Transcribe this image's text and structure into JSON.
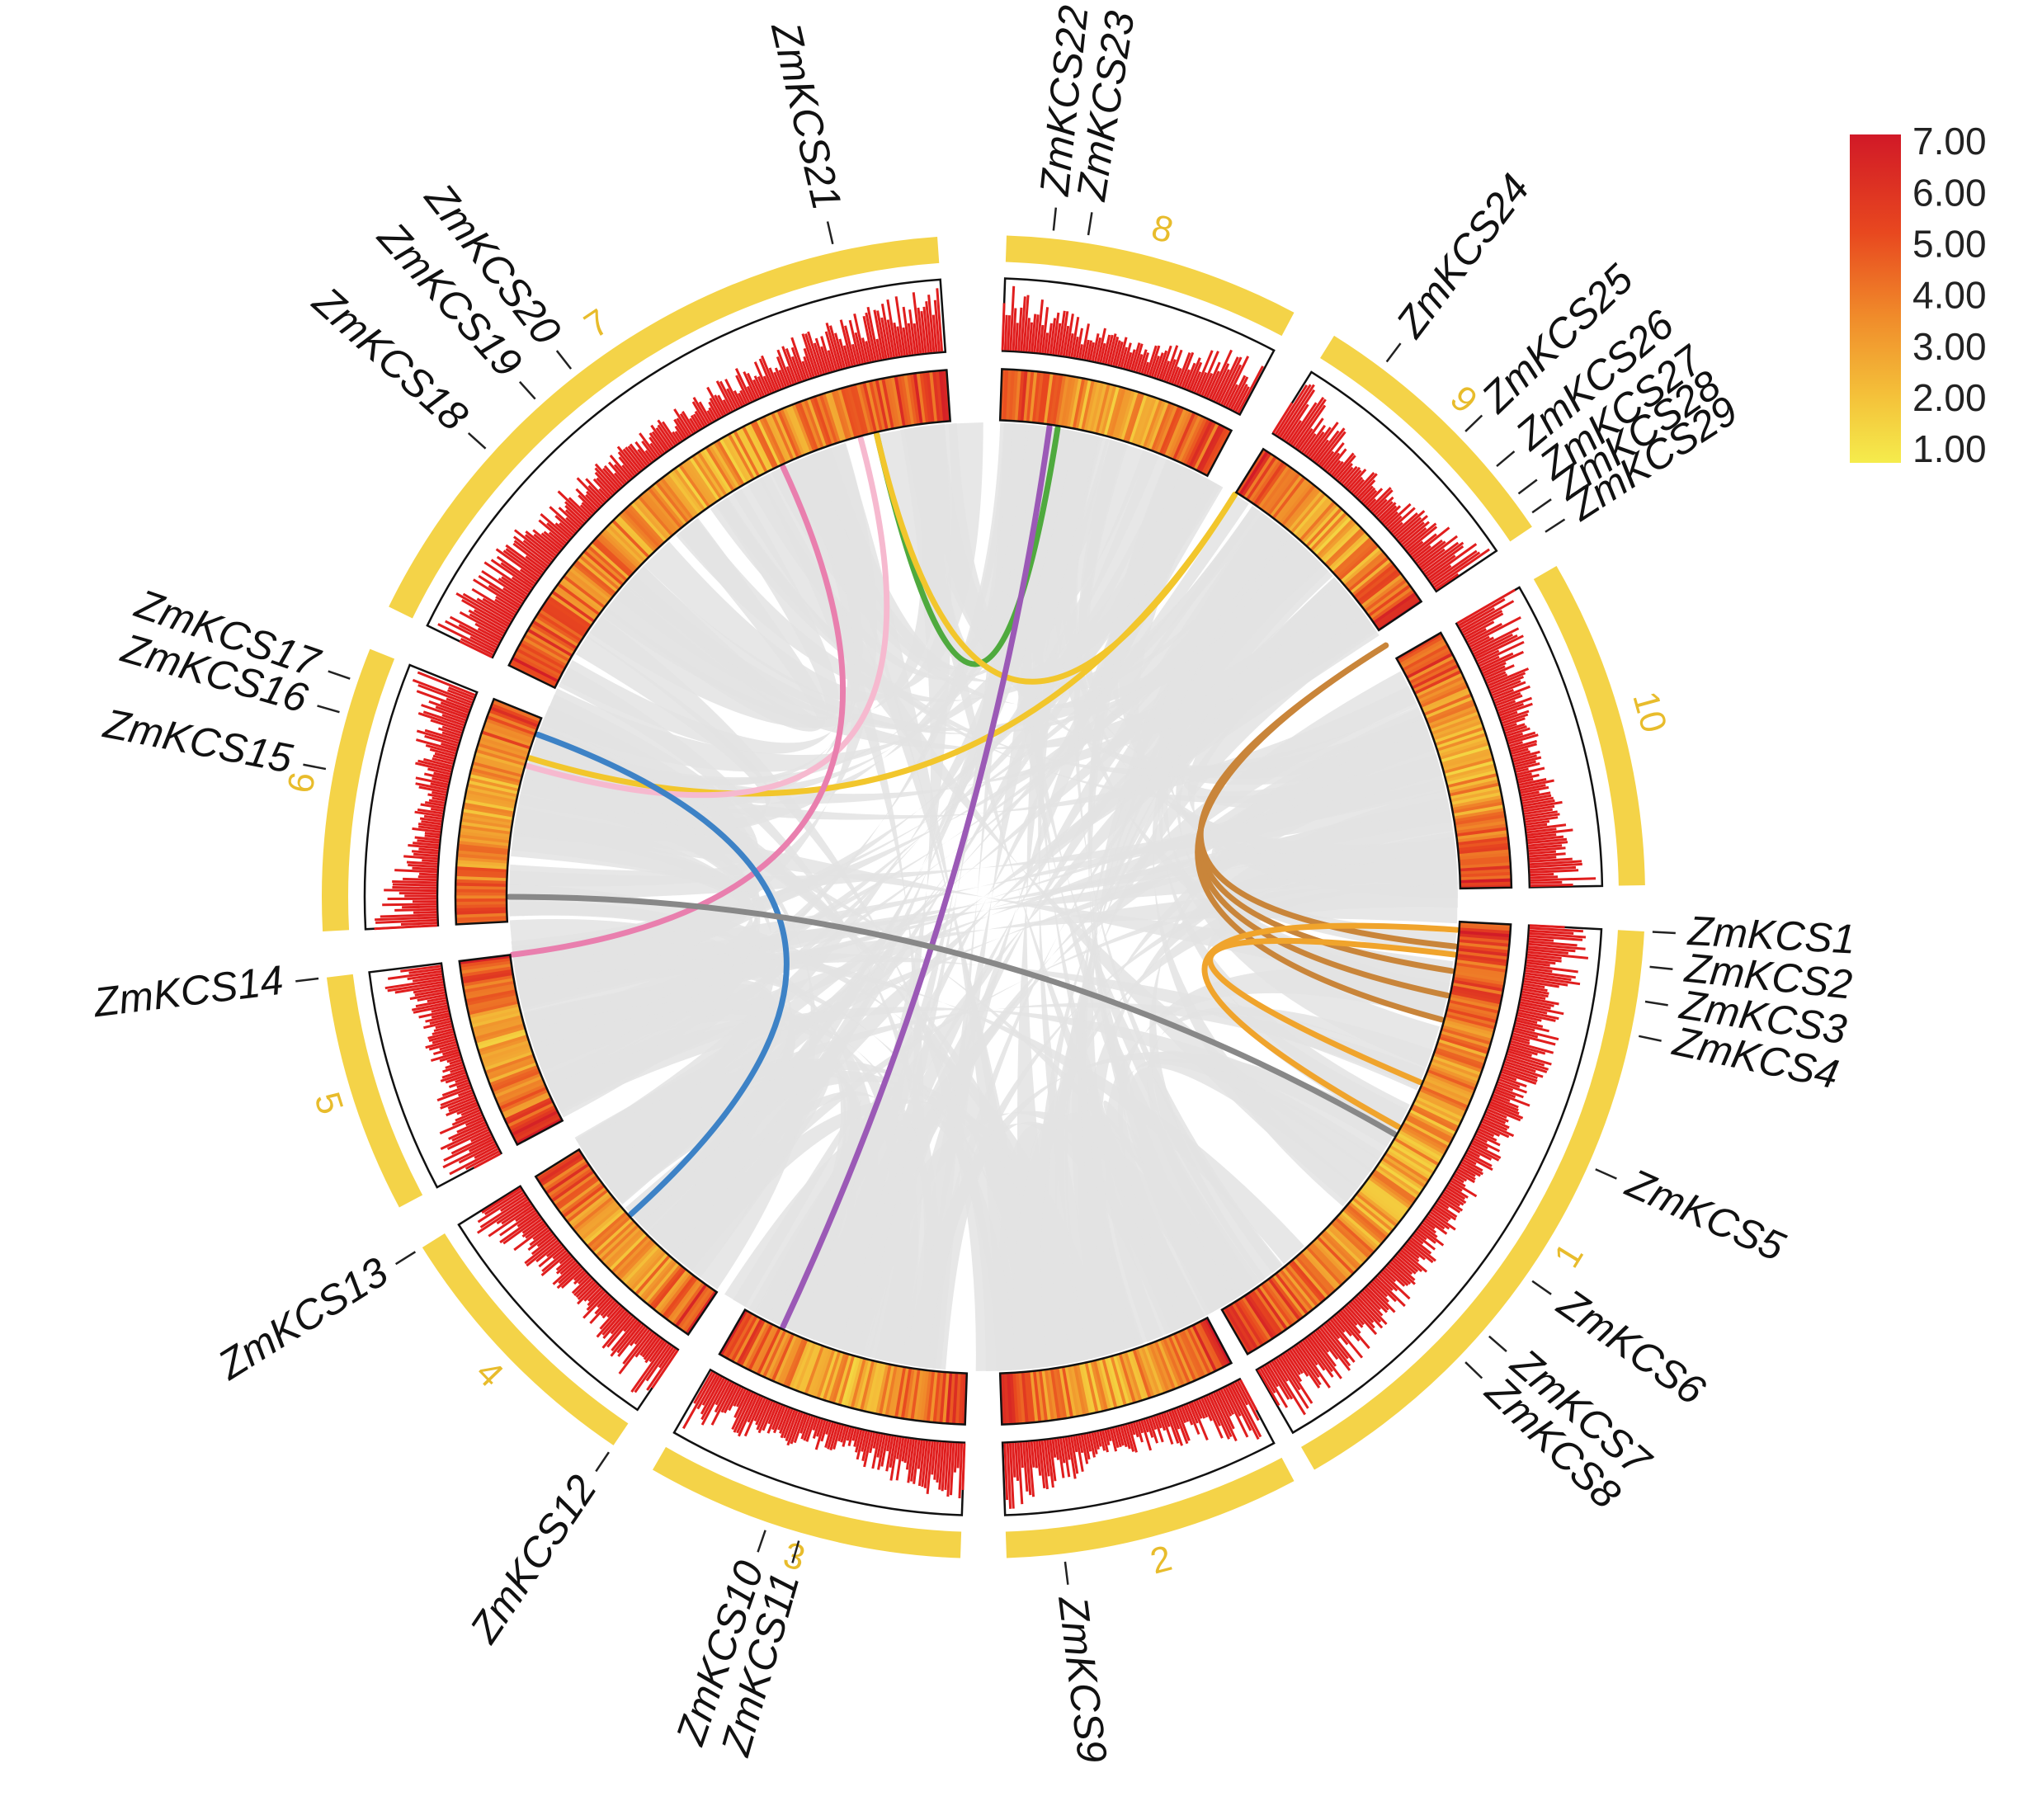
{
  "chromosomes": [
    {
      "label": "1",
      "start": 93,
      "end": 150
    },
    {
      "label": "2",
      "start": 152,
      "end": 178
    },
    {
      "label": "3",
      "start": 182,
      "end": 210
    },
    {
      "label": "4",
      "start": 214,
      "end": 238
    },
    {
      "label": "5",
      "start": 242,
      "end": 263
    },
    {
      "label": "6",
      "start": 267,
      "end": 292
    },
    {
      "label": "7",
      "start": 296,
      "end": 356
    },
    {
      "label": "8",
      "start": 2,
      "end": 28
    },
    {
      "label": "9",
      "start": 32,
      "end": 56
    },
    {
      "label": "10",
      "start": 60,
      "end": 89
    }
  ],
  "genes": [
    {
      "name": "ZmKCS1",
      "angle": 93
    },
    {
      "name": "ZmKCS2",
      "angle": 96
    },
    {
      "name": "ZmKCS3",
      "angle": 99
    },
    {
      "name": "ZmKCS4",
      "angle": 102
    },
    {
      "name": "ZmKCS5",
      "angle": 114
    },
    {
      "name": "ZmKCS6",
      "angle": 125
    },
    {
      "name": "ZmKCS7",
      "angle": 131
    },
    {
      "name": "ZmKCS8",
      "angle": 134
    },
    {
      "name": "ZmKCS9",
      "angle": 173
    },
    {
      "name": "ZmKCS10",
      "angle": 199
    },
    {
      "name": "ZmKCS11",
      "angle": 196
    },
    {
      "name": "ZmKCS12",
      "angle": 214
    },
    {
      "name": "ZmKCS13",
      "angle": 238
    },
    {
      "name": "ZmKCS14",
      "angle": 263
    },
    {
      "name": "ZmKCS15",
      "angle": 281
    },
    {
      "name": "ZmKCS16",
      "angle": 286
    },
    {
      "name": "ZmKCS17",
      "angle": 289
    },
    {
      "name": "ZmKCS18",
      "angle": 312
    },
    {
      "name": "ZmKCS19",
      "angle": 318
    },
    {
      "name": "ZmKCS20",
      "angle": 322
    },
    {
      "name": "ZmKCS21",
      "angle": 347
    },
    {
      "name": "ZmKCS22",
      "angle": 6
    },
    {
      "name": "ZmKCS23",
      "angle": 9
    },
    {
      "name": "ZmKCS24",
      "angle": 37
    },
    {
      "name": "ZmKCS25",
      "angle": 46
    },
    {
      "name": "ZmKCS26",
      "angle": 50
    },
    {
      "name": "ZmKCS27",
      "angle": 53
    },
    {
      "name": "ZmKCS28",
      "angle": 55
    },
    {
      "name": "ZmKCS29",
      "angle": 57
    }
  ],
  "links": [
    {
      "from": 9,
      "to": 347,
      "color": "#4faa3e"
    },
    {
      "from": 32,
      "to": 347,
      "color": "#f2c62c"
    },
    {
      "from": 32,
      "to": 287,
      "color": "#f2c62c"
    },
    {
      "from": 345,
      "to": 286,
      "color": "#f6b9cf"
    },
    {
      "from": 335,
      "to": 263,
      "color": "#e97fae"
    },
    {
      "from": 290,
      "to": 228,
      "color": "#3d82c6"
    },
    {
      "from": 8,
      "to": 205,
      "color": "#9b59b6"
    },
    {
      "from": 270,
      "to": 120,
      "color": "#888888"
    },
    {
      "from": 58,
      "to": 96,
      "color": "#c9853a"
    },
    {
      "from": 58,
      "to": 99,
      "color": "#c9853a"
    },
    {
      "from": 58,
      "to": 102,
      "color": "#c9853a"
    },
    {
      "from": 58,
      "to": 105,
      "color": "#c9853a"
    },
    {
      "from": 94,
      "to": 119,
      "color": "#f0a42c"
    },
    {
      "from": 97,
      "to": 113,
      "color": "#f0a42c"
    }
  ],
  "colors": {
    "chromosome": "#f4d348",
    "density_bar": "#e01e1e",
    "link_background": "#e3e3e3",
    "heat_low": "#f5e94c",
    "heat_high": "#d11927"
  },
  "legend": {
    "ticks": [
      "7.00",
      "6.00",
      "5.00",
      "4.00",
      "3.00",
      "2.00",
      "1.00"
    ],
    "max": 7,
    "min": 1
  }
}
